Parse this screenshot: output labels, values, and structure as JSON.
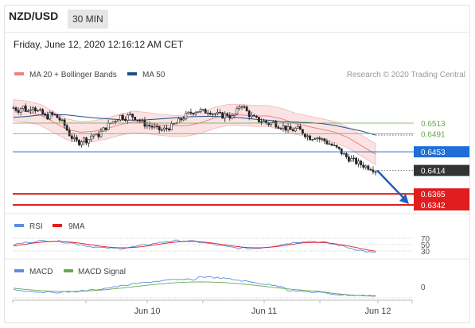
{
  "header": {
    "pair": "NZD/USD",
    "timeframe": "30 MIN"
  },
  "timestamp": "Friday, June 12, 2020 12:16:12 AM CET",
  "legend": {
    "ma20": {
      "label": "MA 20 + Bollinger Bands",
      "color": "#f08080"
    },
    "ma50": {
      "label": "MA 50",
      "color": "#1f4e8c"
    },
    "credit": "Research © 2020 Trading Central"
  },
  "rsi_legend": {
    "rsi": "RSI",
    "ma": "9MA"
  },
  "macd_legend": {
    "macd": "MACD",
    "signal": "MACD Signal"
  },
  "chart_data": {
    "type": "candlestick",
    "y_range": [
      0.633,
      0.6575
    ],
    "levels": [
      {
        "value": 0.6513,
        "label": "0.6513",
        "color": "#6aa84f",
        "kind": "resistance"
      },
      {
        "value": 0.6491,
        "label": "0.6491",
        "color": "#6aa84f",
        "kind": "resistance"
      },
      {
        "value": 0.6453,
        "label": "0.6453",
        "color": "#1f6fd6",
        "kind": "pivot"
      },
      {
        "value": 0.6414,
        "label": "0.6414",
        "color": "#333333",
        "kind": "last"
      },
      {
        "value": 0.6365,
        "label": "0.6365",
        "color": "#e01e1e",
        "kind": "support"
      },
      {
        "value": 0.6342,
        "label": "0.6342",
        "color": "#e01e1e",
        "kind": "support"
      }
    ],
    "x_labels": [
      "Jun 10",
      "Jun 11",
      "Jun 12"
    ],
    "price_path": [
      0.6545,
      0.654,
      0.6548,
      0.6536,
      0.6552,
      0.6538,
      0.6535,
      0.6524,
      0.6532,
      0.6528,
      0.652,
      0.6508,
      0.649,
      0.6478,
      0.6472,
      0.648,
      0.6476,
      0.649,
      0.6485,
      0.6496,
      0.6505,
      0.6514,
      0.652,
      0.6528,
      0.6524,
      0.653,
      0.6526,
      0.652,
      0.6512,
      0.6508,
      0.6505,
      0.65,
      0.6498,
      0.6502,
      0.6506,
      0.6512,
      0.652,
      0.6528,
      0.6534,
      0.6538,
      0.654,
      0.6536,
      0.6539,
      0.6534,
      0.6531,
      0.6528,
      0.6532,
      0.6524,
      0.6535,
      0.6555,
      0.654,
      0.6528,
      0.6522,
      0.6518,
      0.6516,
      0.6512,
      0.6514,
      0.6508,
      0.6506,
      0.65,
      0.6498,
      0.6502,
      0.6496,
      0.6488,
      0.6482,
      0.6485,
      0.648,
      0.6476,
      0.647,
      0.6464,
      0.6458,
      0.6448,
      0.644,
      0.6436,
      0.643,
      0.6426,
      0.6422,
      0.642,
      0.6414
    ],
    "ma50_path": [
      0.6525,
      0.6527,
      0.653,
      0.6531,
      0.653,
      0.6527,
      0.6524,
      0.6522,
      0.652,
      0.6519,
      0.652,
      0.6522,
      0.6524,
      0.6526,
      0.6527,
      0.6527,
      0.6526,
      0.6524,
      0.6521,
      0.6519,
      0.6516,
      0.6515,
      0.6514,
      0.6512,
      0.6508,
      0.6502,
      0.6496,
      0.6488
    ],
    "ma20_path": [
      0.654,
      0.6537,
      0.653,
      0.6515,
      0.65,
      0.6494,
      0.6496,
      0.6502,
      0.651,
      0.6516,
      0.6513,
      0.6509,
      0.6507,
      0.6508,
      0.6514,
      0.6524,
      0.653,
      0.653,
      0.6528,
      0.6528,
      0.6522,
      0.6512,
      0.6506,
      0.65,
      0.6494,
      0.6482,
      0.6465,
      0.6448
    ],
    "forecast": {
      "from": 0.6414,
      "to": 0.6342
    },
    "rsi": {
      "levels": [
        70,
        50,
        30
      ]
    },
    "macd": {
      "levels": [
        0
      ]
    }
  }
}
